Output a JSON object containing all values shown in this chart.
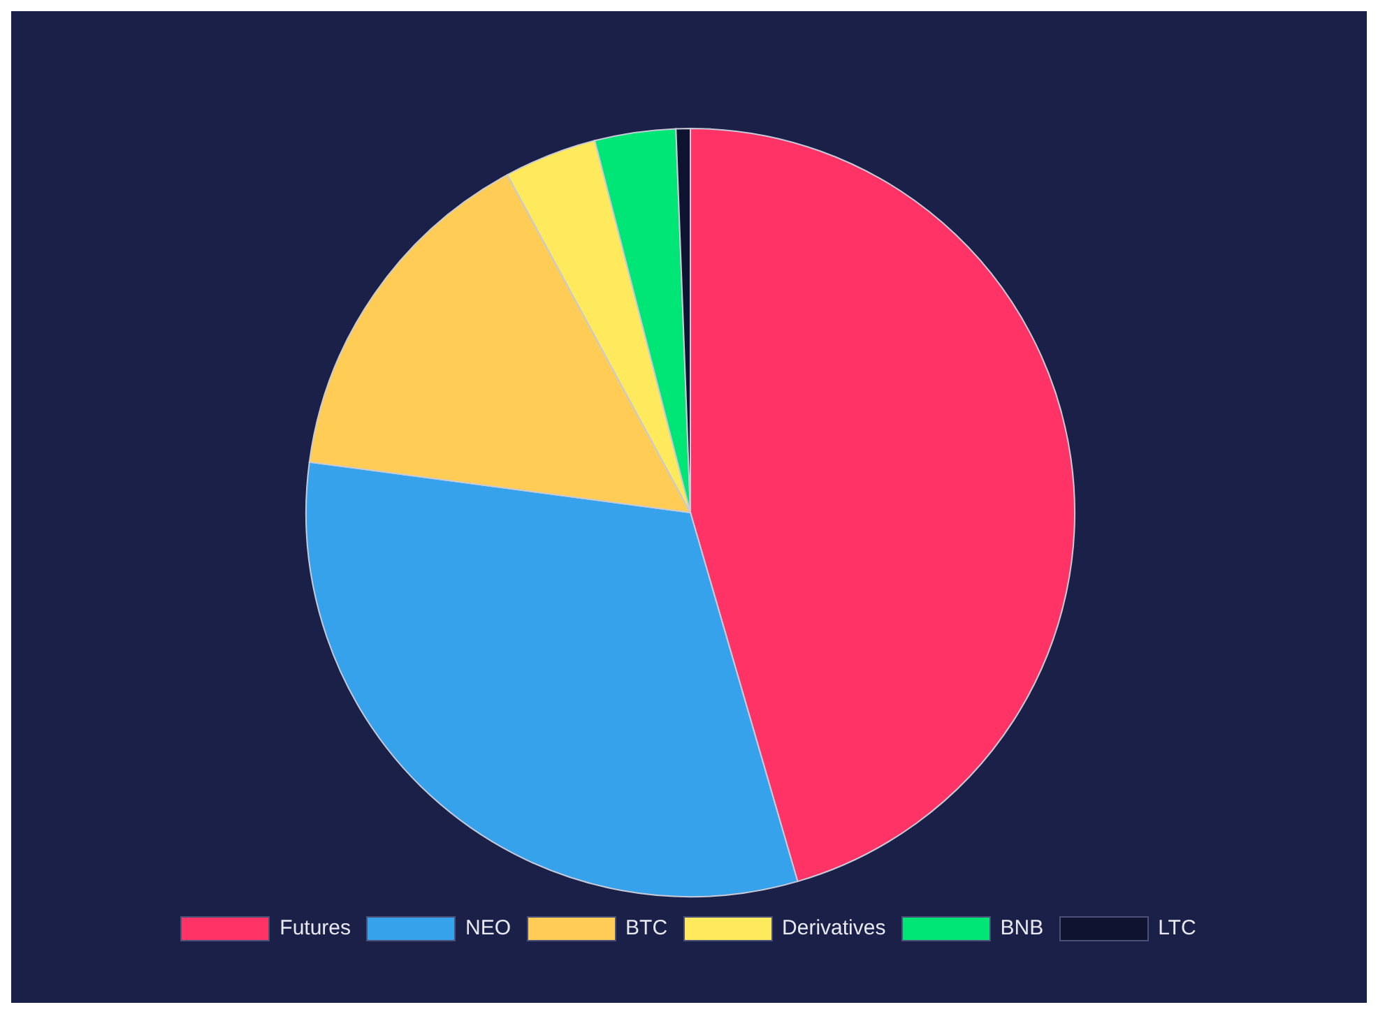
{
  "chart_data": {
    "type": "pie",
    "categories": [
      "Futures",
      "NEO",
      "BTC",
      "Derivatives",
      "BNB",
      "LTC"
    ],
    "values": [
      45.5,
      31.6,
      15.0,
      3.9,
      3.4,
      0.6
    ],
    "colors": [
      "#ff3366",
      "#36a2eb",
      "#ffcd56",
      "#ffe95c",
      "#00e676",
      "#0e1330"
    ],
    "legend": "bottom"
  }
}
